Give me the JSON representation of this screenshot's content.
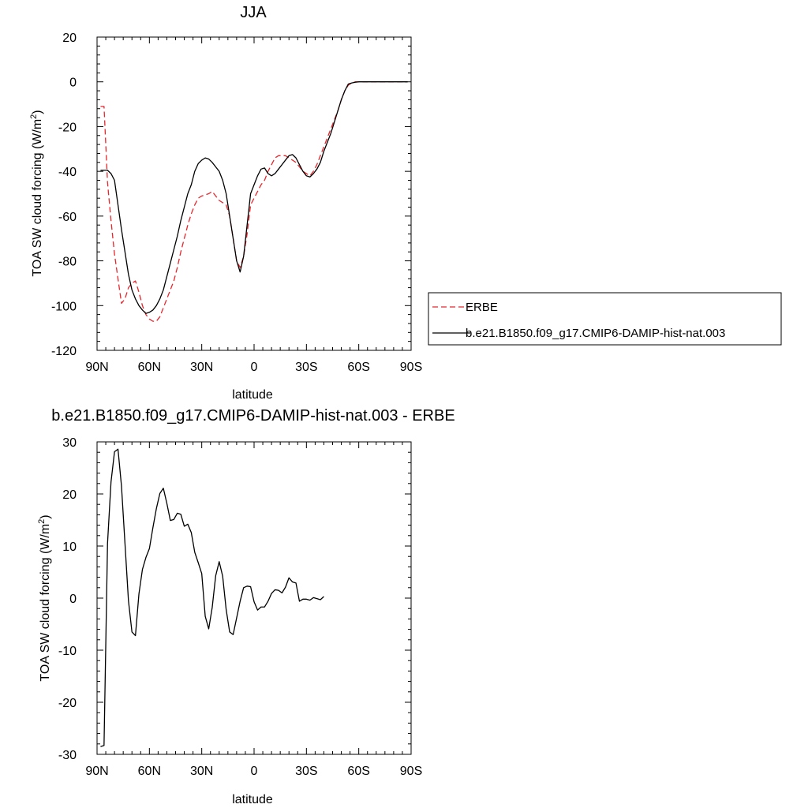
{
  "chart_data": [
    {
      "type": "line",
      "title": "JJA",
      "xlabel": "latitude",
      "ylabel_main": "TOA SW cloud forcing (W/m",
      "ylabel_sup": "2",
      "ylabel_tail": ")",
      "xlim": [
        90,
        -90
      ],
      "ylim": [
        -120,
        20
      ],
      "x_ticks": [
        {
          "value": 90,
          "label": "90N"
        },
        {
          "value": 60,
          "label": "60N"
        },
        {
          "value": 30,
          "label": "30N"
        },
        {
          "value": 0,
          "label": "0"
        },
        {
          "value": -30,
          "label": "30S"
        },
        {
          "value": -60,
          "label": "60S"
        },
        {
          "value": -90,
          "label": "90S"
        }
      ],
      "y_ticks": [
        20,
        0,
        -20,
        -40,
        -60,
        -80,
        -100,
        -120
      ],
      "legend_position": "right-outside",
      "series": [
        {
          "name": "ERBE",
          "color": "#e8262c",
          "dash": "dashed",
          "x": [
            88,
            86,
            84,
            82,
            80,
            78,
            76,
            74,
            72,
            70,
            68,
            66,
            64,
            62,
            60,
            58,
            56,
            54,
            52,
            50,
            48,
            46,
            44,
            42,
            40,
            38,
            36,
            34,
            32,
            30,
            28,
            26,
            24,
            22,
            20,
            18,
            16,
            14,
            12,
            10,
            8,
            6,
            4,
            2,
            0,
            -2,
            -4,
            -6,
            -8,
            -10,
            -12,
            -14,
            -16,
            -18,
            -20,
            -22,
            -24,
            -26,
            -28,
            -30,
            -32,
            -34,
            -36,
            -38,
            -40,
            -42,
            -44,
            -46,
            -48,
            -50,
            -52,
            -54,
            -56,
            -58,
            -60,
            -62,
            -64,
            -66,
            -68,
            -70,
            -72,
            -74,
            -76,
            -78,
            -80,
            -82,
            -84,
            -86,
            -88
          ],
          "y": [
            -11,
            -11,
            -45,
            -62,
            -77,
            -88,
            -99,
            -97,
            -92,
            -90,
            -89,
            -94,
            -100,
            -104,
            -106,
            -107,
            -107,
            -105,
            -101,
            -97,
            -93,
            -89,
            -83,
            -76,
            -70,
            -64,
            -59,
            -55,
            -52,
            -51,
            -50.5,
            -50,
            -49,
            -51,
            -53,
            -54,
            -55,
            -60,
            -70,
            -80,
            -83,
            -78,
            -68,
            -55,
            -52,
            -49,
            -46,
            -44,
            -40,
            -37,
            -34,
            -33,
            -33,
            -33,
            -34,
            -35,
            -36,
            -38,
            -40,
            -41,
            -42,
            -40,
            -37,
            -33,
            -29,
            -25,
            -21,
            -17,
            -13,
            -8,
            -4,
            -1.5,
            -0.5,
            0,
            0,
            0,
            0,
            0,
            0,
            0,
            0,
            0,
            0,
            0,
            0,
            0,
            0,
            0,
            0
          ]
        },
        {
          "name": "b.e21.B1850.f09_g17.CMIP6-DAMIP-hist-nat.003",
          "color": "#000000",
          "dash": "solid",
          "x": [
            88,
            86,
            84,
            82,
            80,
            78,
            76,
            74,
            72,
            70,
            68,
            66,
            64,
            62,
            60,
            58,
            56,
            54,
            52,
            50,
            48,
            46,
            44,
            42,
            40,
            38,
            36,
            34,
            32,
            30,
            28,
            26,
            24,
            22,
            20,
            18,
            16,
            14,
            12,
            10,
            8,
            6,
            4,
            2,
            0,
            -2,
            -4,
            -6,
            -8,
            -10,
            -12,
            -14,
            -16,
            -18,
            -20,
            -22,
            -24,
            -26,
            -28,
            -30,
            -32,
            -34,
            -36,
            -38,
            -40,
            -42,
            -44,
            -46,
            -48,
            -50,
            -52,
            -54,
            -56,
            -58,
            -60,
            -62,
            -64,
            -66,
            -68,
            -70,
            -72,
            -74,
            -76,
            -78,
            -80,
            -82,
            -84,
            -86,
            -88
          ],
          "y": [
            -39.5,
            -39.5,
            -39.5,
            -41,
            -44,
            -55,
            -66,
            -76,
            -86,
            -93,
            -97,
            -100,
            -102,
            -103.5,
            -103,
            -102,
            -100,
            -97,
            -93,
            -87,
            -81,
            -75,
            -69,
            -62,
            -56,
            -50,
            -46,
            -40,
            -36.5,
            -35,
            -34,
            -34.5,
            -36,
            -38,
            -40,
            -44,
            -50,
            -60,
            -70,
            -80,
            -85,
            -78,
            -64,
            -50,
            -46,
            -42,
            -39,
            -38.5,
            -41,
            -42,
            -41,
            -39,
            -37,
            -35,
            -33,
            -32.5,
            -34,
            -37,
            -40,
            -42,
            -42.5,
            -41,
            -39,
            -36,
            -31,
            -27,
            -23,
            -18,
            -13,
            -8,
            -4,
            -1,
            -0.5,
            -0.2,
            0,
            0,
            0,
            0,
            0,
            0,
            0,
            0,
            0,
            0,
            0,
            0,
            0,
            0,
            0
          ]
        }
      ]
    },
    {
      "type": "line",
      "title": "b.e21.B1850.f09_g17.CMIP6-DAMIP-hist-nat.003 - ERBE",
      "xlabel": "latitude",
      "ylabel_main": "TOA SW cloud forcing (W/m",
      "ylabel_sup": "2",
      "ylabel_tail": ")",
      "xlim": [
        90,
        -90
      ],
      "ylim": [
        -30,
        30
      ],
      "x_ticks": [
        {
          "value": 90,
          "label": "90N"
        },
        {
          "value": 60,
          "label": "60N"
        },
        {
          "value": 30,
          "label": "30N"
        },
        {
          "value": 0,
          "label": "0"
        },
        {
          "value": -30,
          "label": "30S"
        },
        {
          "value": -60,
          "label": "60S"
        },
        {
          "value": -90,
          "label": "90S"
        }
      ],
      "y_ticks": [
        30,
        20,
        10,
        0,
        -10,
        -20,
        -30
      ],
      "series": [
        {
          "color": "#000000",
          "dash": "solid",
          "x": [
            88,
            86,
            84,
            82,
            80,
            78,
            76,
            74,
            72,
            70,
            68,
            66,
            64,
            62,
            60,
            58,
            56,
            54,
            52,
            50,
            48,
            46,
            44,
            42,
            40,
            38,
            36,
            34,
            32,
            30,
            28,
            26,
            24,
            22,
            20,
            18,
            16,
            14,
            12,
            10,
            8,
            6,
            4,
            2,
            0,
            -2,
            -4,
            -6,
            -8,
            -10,
            -12,
            -14,
            -16,
            -18,
            -20,
            -22,
            -24,
            -26,
            -28,
            -30,
            -32,
            -34,
            -36,
            -38,
            -40,
            -42,
            -44,
            -46,
            -48,
            -50,
            -52,
            -54,
            -56,
            -58,
            -60,
            -62,
            -64,
            -66,
            -68,
            -70,
            -72,
            -74,
            -76,
            -78,
            -80,
            -82,
            -84,
            -86,
            -88
          ],
          "y": [
            -28.5,
            -28.3,
            10.5,
            22.3,
            28.1,
            28.6,
            21.5,
            10.5,
            -0.5,
            -6.5,
            -7.2,
            0.8,
            5.5,
            7.8,
            9.5,
            13.5,
            17.2,
            20.1,
            21.1,
            18.2,
            14.9,
            15.1,
            16.3,
            16.1,
            13.8,
            14.2,
            12.6,
            8.8,
            6.8,
            4.7,
            -3.5,
            -5.9,
            -1.8,
            4.3,
            7.0,
            4.2,
            -2.2,
            -6.5,
            -7.0,
            -3.8,
            -0.6,
            2.0,
            2.3,
            2.2,
            -0.7,
            -2.3,
            -1.7,
            -1.7,
            -0.6,
            0.9,
            1.6,
            1.5,
            1.0,
            2.1,
            3.9,
            3.1,
            2.9,
            -0.6,
            -0.2,
            -0.2,
            -0.4,
            0.1,
            -0.1,
            -0.3,
            0.3,
            null,
            null,
            null,
            null,
            null,
            null,
            null,
            null,
            null,
            null,
            null,
            null,
            null,
            null,
            null,
            null,
            null,
            null,
            null,
            null,
            null,
            null,
            null,
            null
          ]
        }
      ]
    }
  ]
}
